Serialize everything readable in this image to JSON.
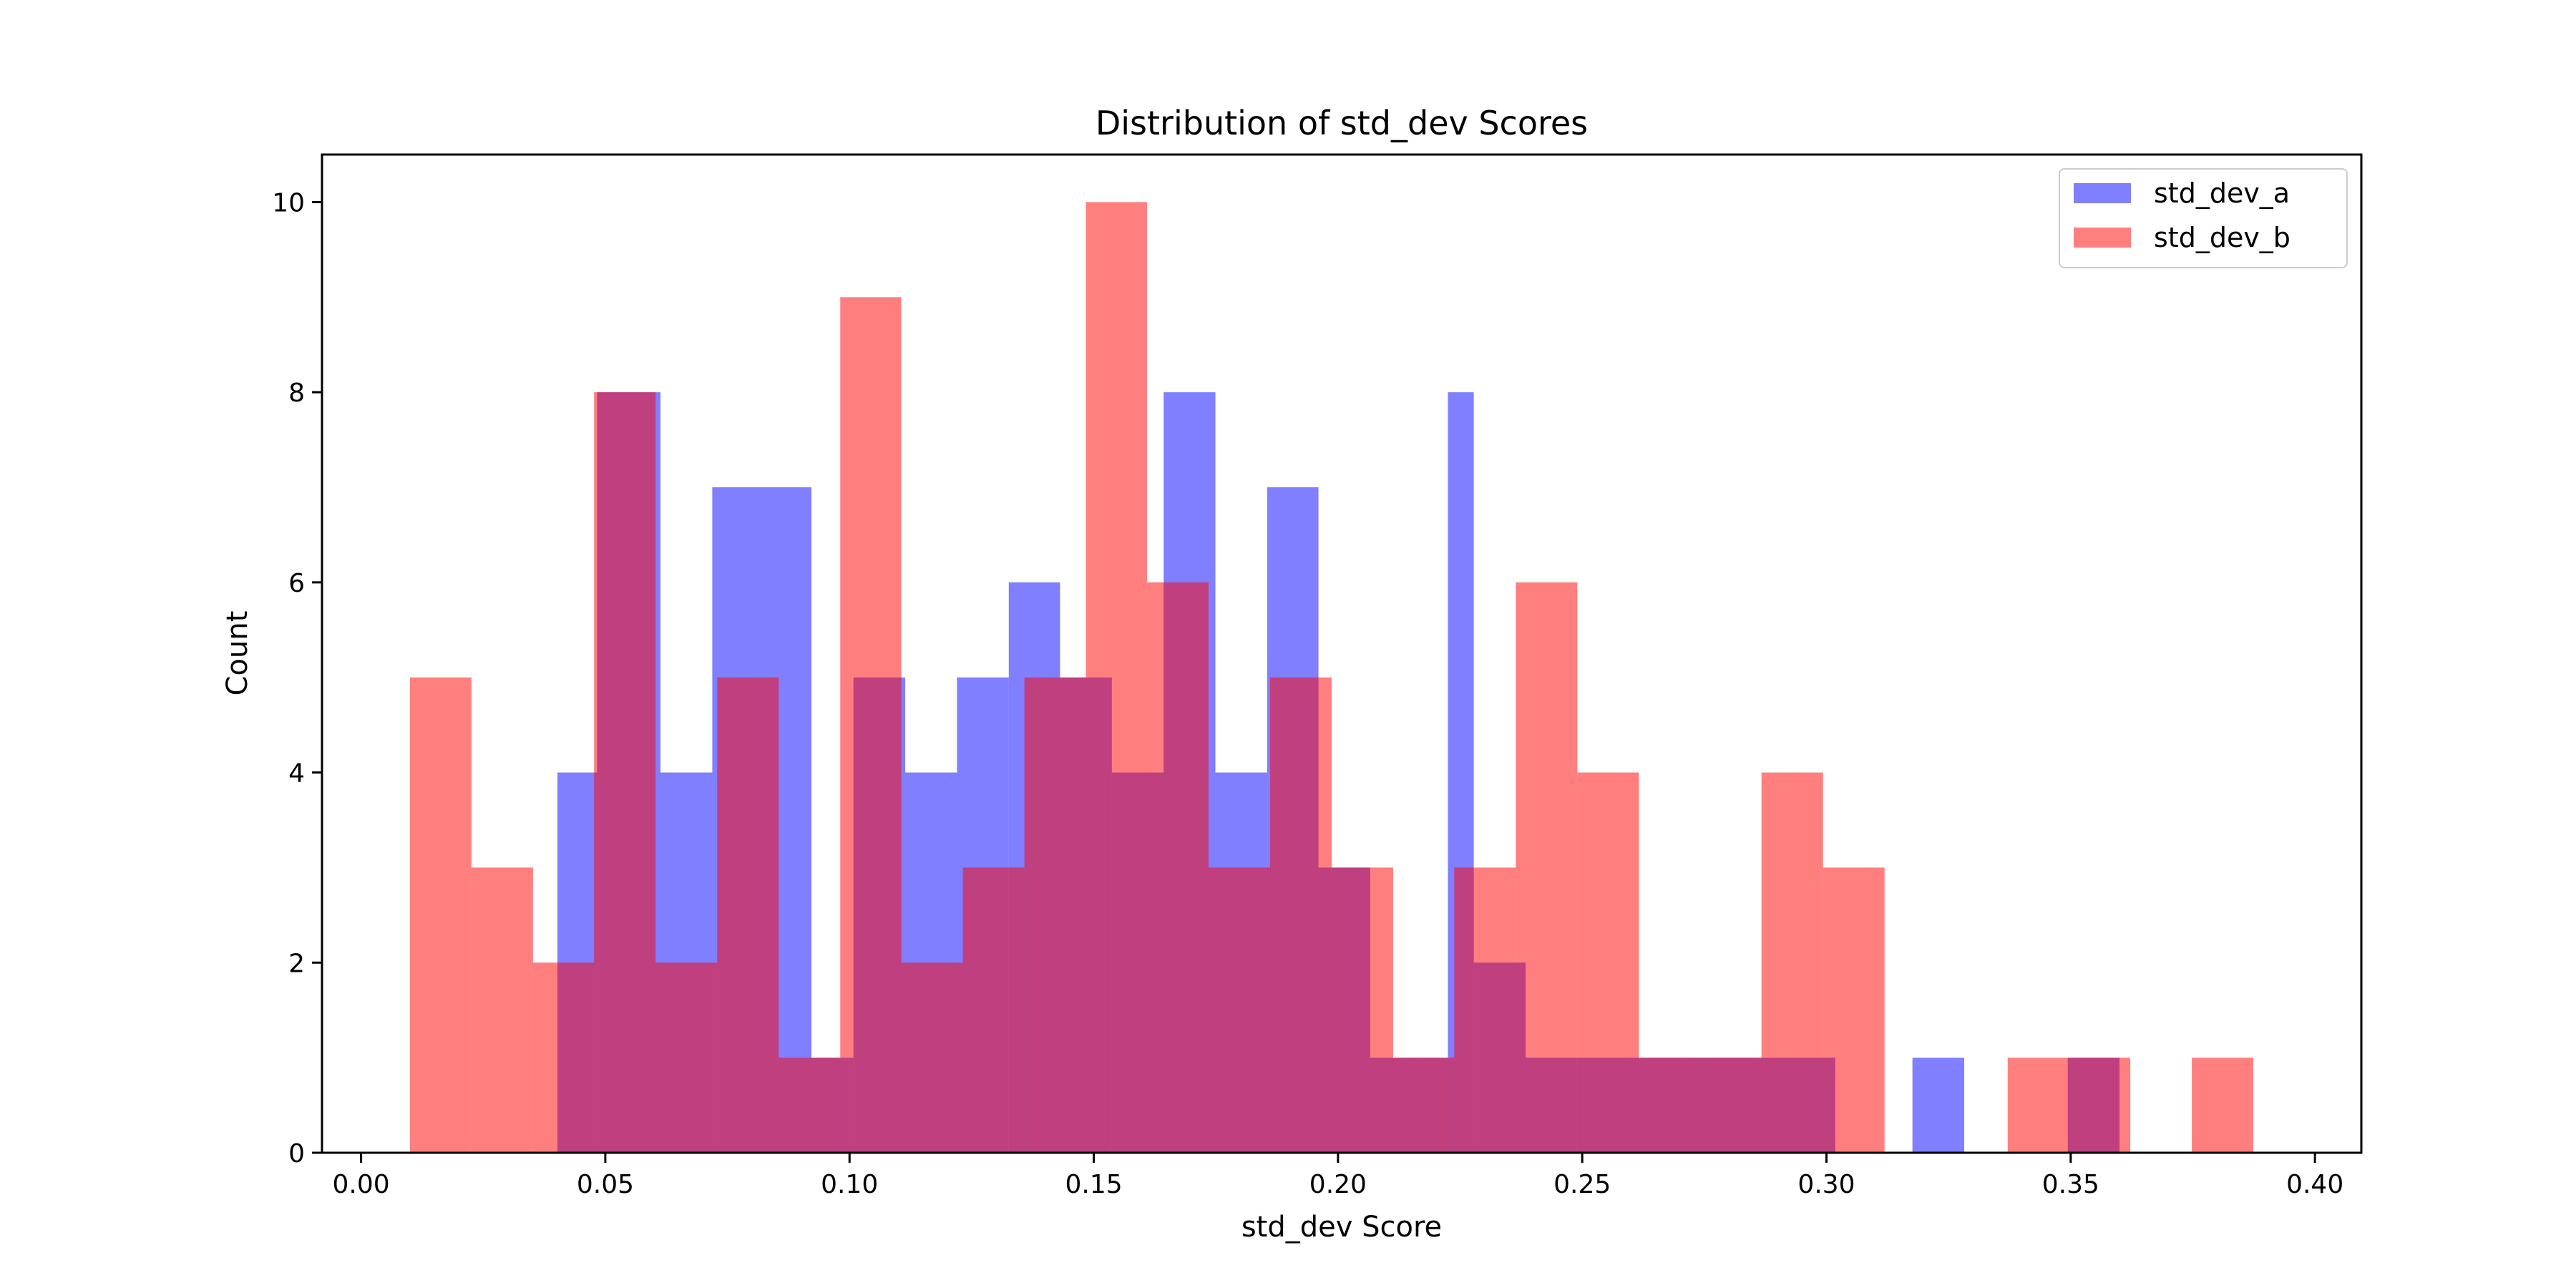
{
  "chart_data": {
    "type": "bar",
    "title": "Distribution of std_dev Scores",
    "xlabel": "std_dev Score",
    "ylabel": "Count",
    "xlim": [
      -0.008,
      0.4095
    ],
    "ylim": [
      0,
      10.5
    ],
    "x_ticks": [
      "0.00",
      "0.05",
      "0.10",
      "0.15",
      "0.20",
      "0.25",
      "0.30",
      "0.35",
      "0.40"
    ],
    "y_ticks": [
      "0",
      "2",
      "4",
      "6",
      "8",
      "10"
    ],
    "grid": false,
    "legend_position": "top-right",
    "series": [
      {
        "name": "std_dev_a",
        "color": "#0000ff",
        "opacity": 0.5,
        "bin_edges": [
          0.0402,
          0.0483,
          0.0613,
          0.0719,
          0.0826,
          0.0922,
          0.1008,
          0.1114,
          0.122,
          0.1326,
          0.1431,
          0.1537,
          0.1643,
          0.1749,
          0.1855,
          0.196,
          0.2066,
          0.2172,
          0.2225,
          0.2278,
          0.2384,
          0.2489,
          0.2595,
          0.2701,
          0.2807,
          0.2912,
          0.3018,
          0.3124,
          0.3176,
          0.3282,
          0.3388,
          0.3494,
          0.36
        ],
        "counts": [
          4,
          8,
          4,
          7,
          7,
          1,
          5,
          4,
          5,
          6,
          5,
          4,
          8,
          4,
          7,
          3,
          1,
          1,
          8,
          2,
          1,
          1,
          1,
          1,
          1,
          1,
          0,
          0,
          1,
          0,
          0,
          1
        ]
      },
      {
        "name": "std_dev_b",
        "color": "#ff0000",
        "opacity": 0.5,
        "bin_edges": [
          0.01,
          0.0226,
          0.0352,
          0.0477,
          0.0603,
          0.0729,
          0.0855,
          0.0981,
          0.1106,
          0.1232,
          0.1358,
          0.1484,
          0.1609,
          0.1735,
          0.1861,
          0.1987,
          0.2113,
          0.2238,
          0.2364,
          0.249,
          0.2616,
          0.2742,
          0.2867,
          0.2993,
          0.3119,
          0.3245,
          0.3371,
          0.3496,
          0.3622,
          0.3748,
          0.3874
        ],
        "counts": [
          5,
          3,
          2,
          8,
          2,
          5,
          1,
          9,
          2,
          3,
          5,
          10,
          6,
          3,
          5,
          3,
          1,
          3,
          6,
          4,
          1,
          1,
          4,
          3,
          0,
          0,
          1,
          1,
          0,
          1
        ]
      }
    ]
  }
}
